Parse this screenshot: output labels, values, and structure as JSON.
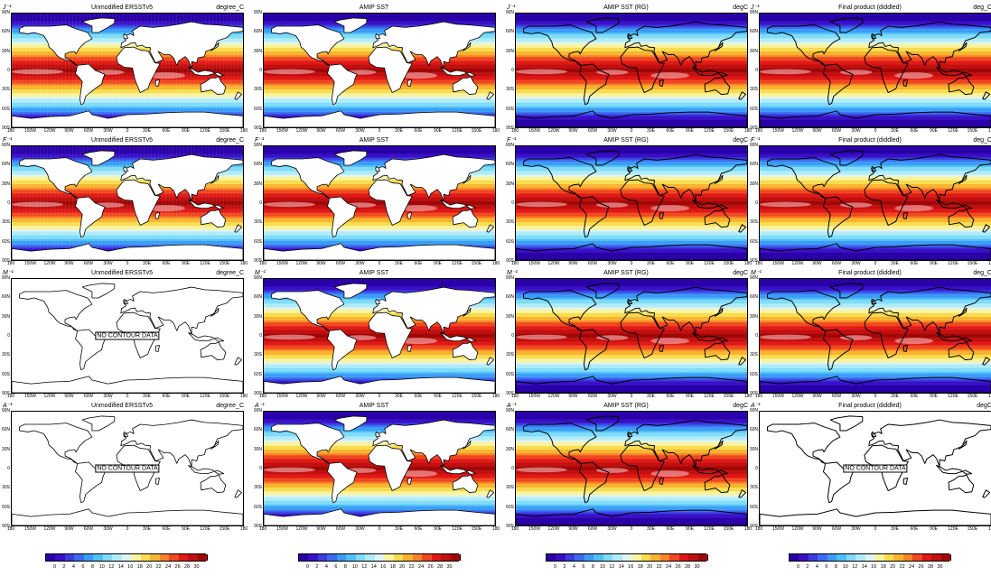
{
  "panels": [
    {
      "label": "J⁻¹",
      "title": "Unmodified ERSSTv5",
      "units": "degree_C",
      "has_data": true,
      "ocean_grid": true
    },
    {
      "label": "",
      "title": "AMIP SST",
      "units": "",
      "has_data": true,
      "ocean_grid": false
    },
    {
      "label": "J⁻¹",
      "title": "AMIP SST (RG)",
      "units": "degC",
      "has_data": true,
      "ocean_grid": false
    },
    {
      "label": "J⁻¹",
      "title": "Final product (diddled)",
      "units": "deg_C",
      "has_data": true,
      "ocean_grid": false
    },
    {
      "label": "F⁻¹",
      "title": "Unmodified ERSSTv5",
      "units": "degree_C",
      "has_data": true,
      "ocean_grid": true
    },
    {
      "label": "F⁻¹",
      "title": "AMIP SST",
      "units": "",
      "has_data": true,
      "ocean_grid": false
    },
    {
      "label": "F⁻¹",
      "title": "AMIP SST (RG)",
      "units": "degC",
      "has_data": true,
      "ocean_grid": false
    },
    {
      "label": "F⁻¹",
      "title": "Final product (diddled)",
      "units": "deg_C",
      "has_data": true,
      "ocean_grid": false
    },
    {
      "label": "M⁻¹",
      "title": "Unmodified ERSSTv5",
      "units": "degree_C",
      "has_data": false,
      "ocean_grid": false
    },
    {
      "label": "M⁻¹",
      "title": "AMIP SST",
      "units": "",
      "has_data": true,
      "ocean_grid": false
    },
    {
      "label": "M⁻¹",
      "title": "AMIP SST (RG)",
      "units": "degC",
      "has_data": true,
      "ocean_grid": false
    },
    {
      "label": "M⁻¹",
      "title": "Final product (diddled)",
      "units": "deg_C",
      "has_data": true,
      "ocean_grid": false
    },
    {
      "label": "A⁻¹",
      "title": "Unmodified ERSSTv5",
      "units": "degree_C",
      "has_data": false,
      "ocean_grid": false
    },
    {
      "label": "A⁻¹",
      "title": "AMIP SST",
      "units": "",
      "has_data": true,
      "ocean_grid": false
    },
    {
      "label": "A⁻¹",
      "title": "AMIP SST (RG)",
      "units": "degC",
      "has_data": true,
      "ocean_grid": false
    },
    {
      "label": "A⁻¹",
      "title": "Final product (diddled)",
      "units": "degC",
      "has_data": false,
      "ocean_grid": false
    }
  ],
  "no_data_text": "NO CONTOUR DATA",
  "lat_labels": [
    "90N",
    "60N",
    "30N",
    "0",
    "30S",
    "60S",
    "90S"
  ],
  "lon_labels": [
    "180",
    "150W",
    "120W",
    "90W",
    "60W",
    "30W",
    "0",
    "30E",
    "60E",
    "90E",
    "120E",
    "150E",
    "180"
  ],
  "colorbar": {
    "labels": [
      "0",
      "2",
      "4",
      "6",
      "8",
      "10",
      "12",
      "14",
      "16",
      "18",
      "20",
      "22",
      "24",
      "26",
      "28",
      "30"
    ],
    "colors": [
      "#2a00a8",
      "#3a10c8",
      "#3c3ce0",
      "#3c6cf0",
      "#3c9cf8",
      "#50c0f8",
      "#80dcf8",
      "#b0ecf8",
      "#e0f4f4",
      "#f8f4a0",
      "#f8dc50",
      "#f8b430",
      "#f8842a",
      "#f04820",
      "#e01818",
      "#c01010",
      "#a00808"
    ],
    "count": 4
  }
}
